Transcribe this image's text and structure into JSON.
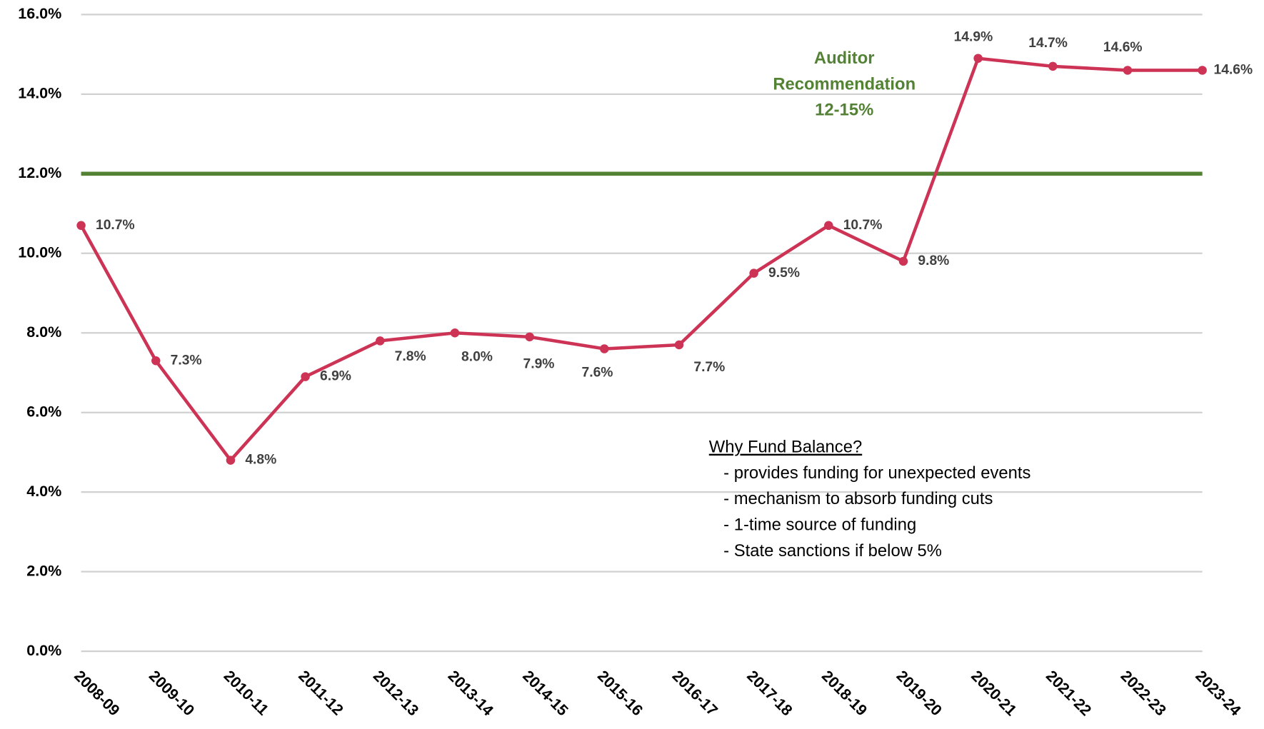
{
  "chart_data": {
    "type": "line",
    "categories": [
      "2008-09",
      "2009-10",
      "2010-11",
      "2011-12",
      "2012-13",
      "2013-14",
      "2014-15",
      "2015-16",
      "2016-17",
      "2017-18",
      "2018-19",
      "2019-20",
      "2020-21",
      "2021-22",
      "2022-23",
      "2023-24"
    ],
    "series": [
      {
        "color": "#cc3355",
        "values": [
          10.7,
          7.3,
          4.8,
          6.9,
          7.8,
          8.0,
          7.9,
          7.6,
          7.7,
          9.5,
          10.7,
          9.8,
          14.9,
          14.7,
          14.6,
          14.6
        ],
        "value_labels": [
          "10.7%",
          "7.3%",
          "4.8%",
          "6.9%",
          "7.8%",
          "8.0%",
          "7.9%",
          "7.6%",
          "7.7%",
          "9.5%",
          "10.7%",
          "9.8%",
          "14.9%",
          "14.7%",
          "14.6%",
          "14.6%"
        ]
      }
    ],
    "ylim": [
      0,
      16
    ],
    "yticks": [
      {
        "value": 0,
        "label": "0.0%"
      },
      {
        "value": 2,
        "label": "2.0%"
      },
      {
        "value": 4,
        "label": "4.0%"
      },
      {
        "value": 6,
        "label": "6.0%"
      },
      {
        "value": 8,
        "label": "8.0%"
      },
      {
        "value": 10,
        "label": "10.0%"
      },
      {
        "value": 12,
        "label": "12.0%"
      },
      {
        "value": 14,
        "label": "14.0%"
      },
      {
        "value": 16,
        "label": "16.0%"
      }
    ],
    "grid": true,
    "reference_line": {
      "value": 12,
      "color": "#548235"
    },
    "annotation": [
      "Auditor",
      "Recommendation",
      "12-15%"
    ],
    "text_box": {
      "title": "Why Fund Balance?",
      "items": [
        "-  provides funding for unexpected events",
        "-  mechanism to absorb funding cuts",
        "-  1-time source of funding",
        "-  State sanctions if below 5%"
      ]
    }
  }
}
